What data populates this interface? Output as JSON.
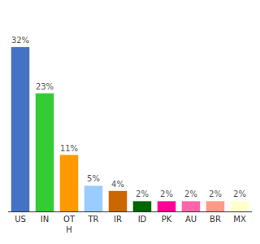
{
  "chart_data": {
    "type": "bar",
    "categories": [
      "US",
      "IN",
      "OT\nH",
      "TR",
      "IR",
      "ID",
      "PK",
      "AU",
      "BR",
      "MX"
    ],
    "values": [
      32,
      23,
      11,
      5,
      4,
      2,
      2,
      2,
      2,
      2
    ],
    "value_labels": [
      "32%",
      "23%",
      "11%",
      "5%",
      "4%",
      "2%",
      "2%",
      "2%",
      "2%",
      "2%"
    ],
    "colors": [
      "#4472c4",
      "#33cc33",
      "#ff9900",
      "#99ccff",
      "#cc6600",
      "#006600",
      "#ff0099",
      "#ff66aa",
      "#ff9988",
      "#ffffcc"
    ],
    "data_labels": true,
    "ylim": [
      0,
      38
    ],
    "tick_labels": "x",
    "grid": false
  }
}
